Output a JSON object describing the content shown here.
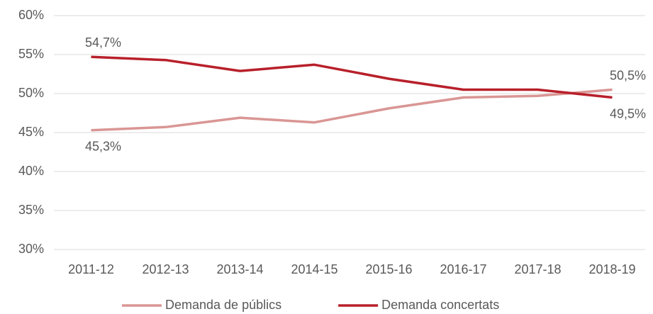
{
  "chart_data": {
    "type": "line",
    "categories": [
      "2011-12",
      "2012-13",
      "2013-14",
      "2014-15",
      "2015-16",
      "2016-17",
      "2017-18",
      "2018-19"
    ],
    "series": [
      {
        "name": "Demanda de públics",
        "color": "#d99694",
        "values": [
          45.3,
          45.7,
          46.9,
          46.3,
          48.1,
          49.5,
          49.7,
          50.5
        ],
        "value_labels": [
          "45,3%",
          null,
          null,
          null,
          null,
          null,
          null,
          "50,5%"
        ]
      },
      {
        "name": "Demanda concertats",
        "color": "#b8202a",
        "values": [
          54.7,
          54.3,
          52.9,
          53.7,
          51.9,
          50.5,
          50.5,
          49.5
        ],
        "value_labels": [
          "54,7%",
          null,
          null,
          null,
          null,
          null,
          null,
          "49,5%"
        ]
      }
    ],
    "ylim": [
      30,
      60
    ],
    "yticks": [
      {
        "value": 30,
        "label": "30%"
      },
      {
        "value": 35,
        "label": "35%"
      },
      {
        "value": 40,
        "label": "40%"
      },
      {
        "value": 45,
        "label": "45%"
      },
      {
        "value": 50,
        "label": "50%"
      },
      {
        "value": 55,
        "label": "55%"
      },
      {
        "value": 60,
        "label": "60%"
      }
    ],
    "grid": true,
    "legend": "bottom"
  }
}
